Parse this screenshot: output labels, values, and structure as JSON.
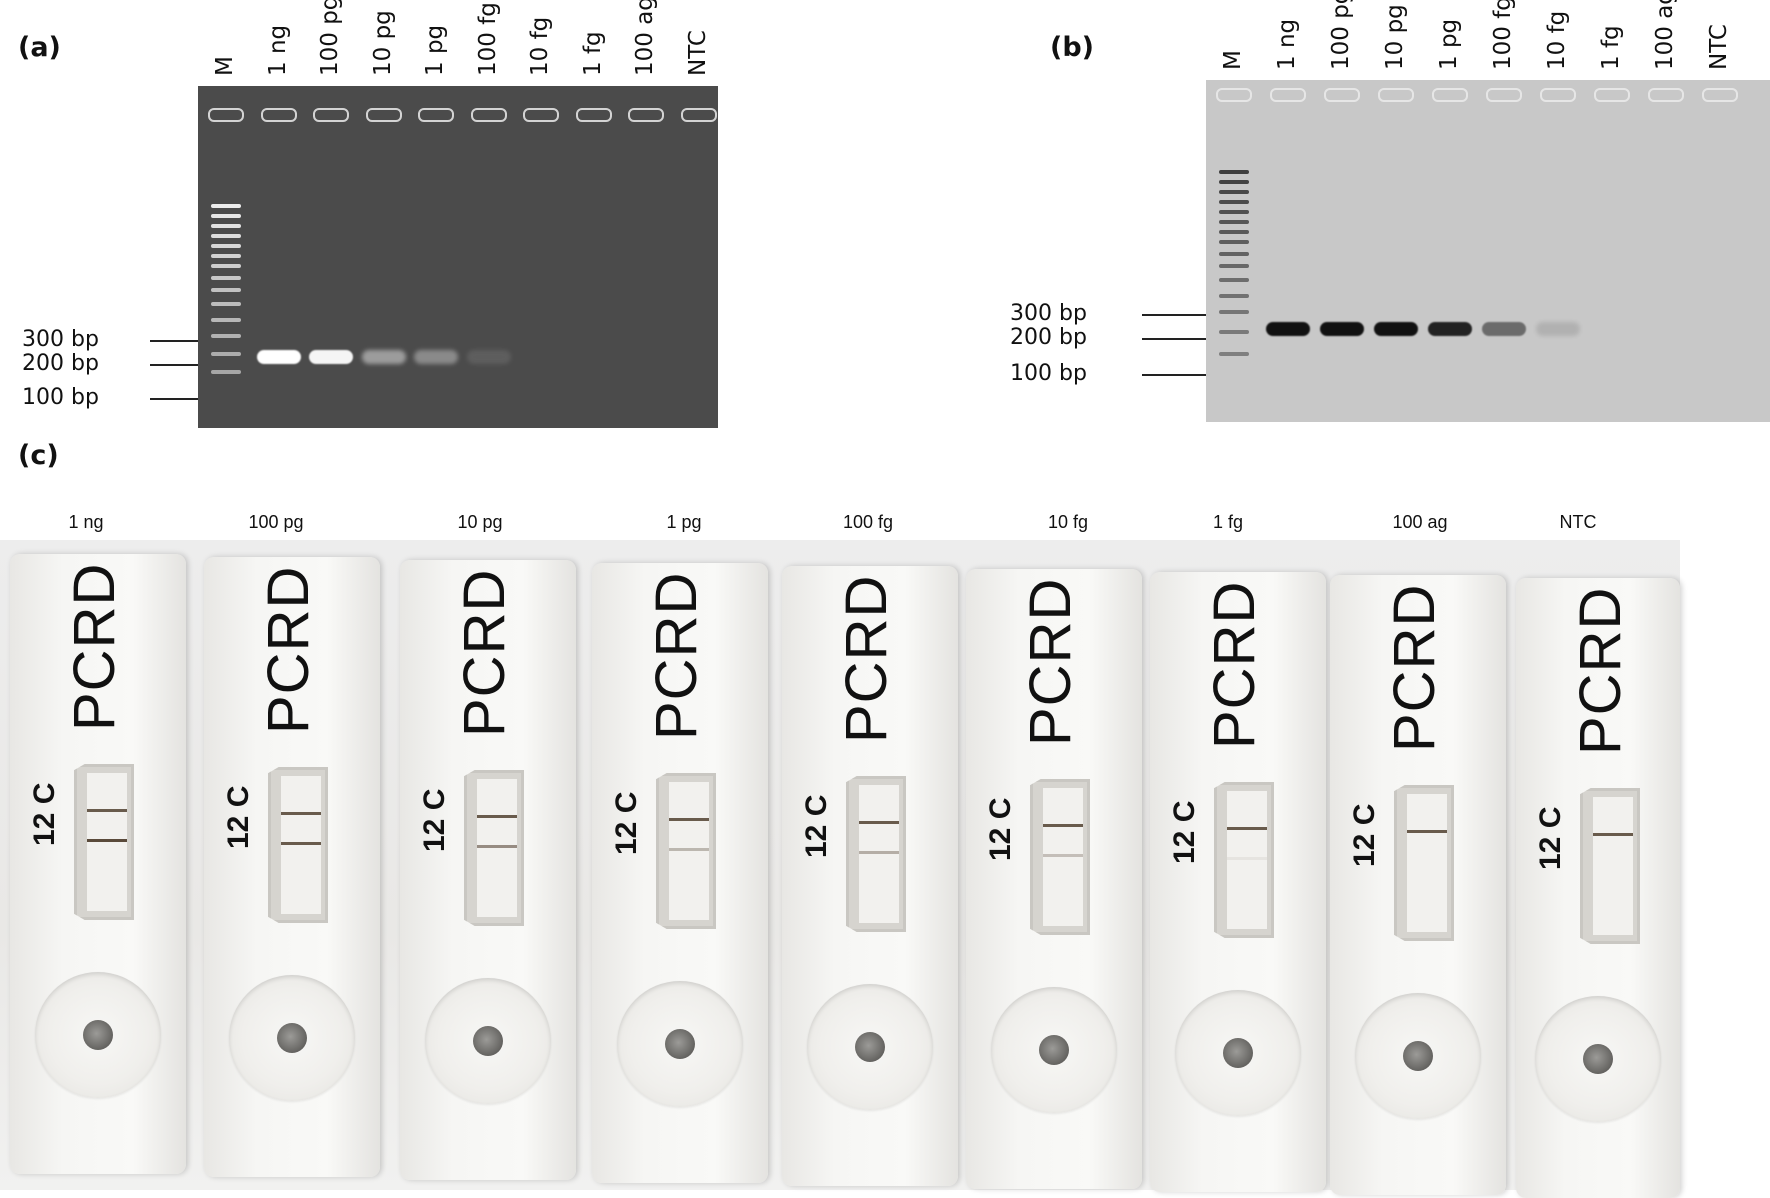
{
  "panels": {
    "a": {
      "letter": "(a)"
    },
    "b": {
      "letter": "(b)"
    },
    "c": {
      "letter": "(c)"
    }
  },
  "gel_a": {
    "lanes": [
      "M",
      "1 ng",
      "100 pg",
      "10 pg",
      "1 pg",
      "100 fg",
      "10 fg",
      "1 fg",
      "100 ag",
      "NTC"
    ],
    "size_markers": [
      "300 bp",
      "200 bp",
      "100 bp"
    ],
    "band_intensity": [
      1.0,
      0.95,
      0.45,
      0.35,
      0.1,
      0,
      0,
      0,
      0
    ],
    "colors": {
      "background": "#4a4a4a",
      "band": "#ffffff"
    }
  },
  "gel_b": {
    "lanes": [
      "M",
      "1 ng",
      "100 pg",
      "10 pg",
      "1 pg",
      "100 fg",
      "10 fg",
      "1 fg",
      "100 ag",
      "NTC"
    ],
    "size_markers": [
      "300 bp",
      "200 bp",
      "100 bp"
    ],
    "band_intensity": [
      1.0,
      1.0,
      1.0,
      0.9,
      0.5,
      0.12,
      0,
      0,
      0
    ],
    "colors": {
      "background": "#c9c9c9",
      "band": "#111111"
    }
  },
  "strips": {
    "items": [
      {
        "label": "1 ng",
        "brand": "PCRD",
        "code": "12 C",
        "test_line": 1.0
      },
      {
        "label": "100 pg",
        "brand": "PCRD",
        "code": "12 C",
        "test_line": 0.9
      },
      {
        "label": "10 pg",
        "brand": "PCRD",
        "code": "12 C",
        "test_line": 0.6
      },
      {
        "label": "1 pg",
        "brand": "PCRD",
        "code": "12 C",
        "test_line": 0.35
      },
      {
        "label": "100 fg",
        "brand": "PCRD",
        "code": "12 C",
        "test_line": 0.4
      },
      {
        "label": "10 fg",
        "brand": "PCRD",
        "code": "12 C",
        "test_line": 0.3
      },
      {
        "label": "1 fg",
        "brand": "PCRD",
        "code": "12 C",
        "test_line": 0.08
      },
      {
        "label": "100 ag",
        "brand": "PCRD",
        "code": "12 C",
        "test_line": 0
      },
      {
        "label": "NTC",
        "brand": "PCRD",
        "code": "12 C",
        "test_line": 0
      }
    ],
    "colors": {
      "control_line": "#5a4a3a",
      "test_line": "#5a4a3a"
    }
  }
}
